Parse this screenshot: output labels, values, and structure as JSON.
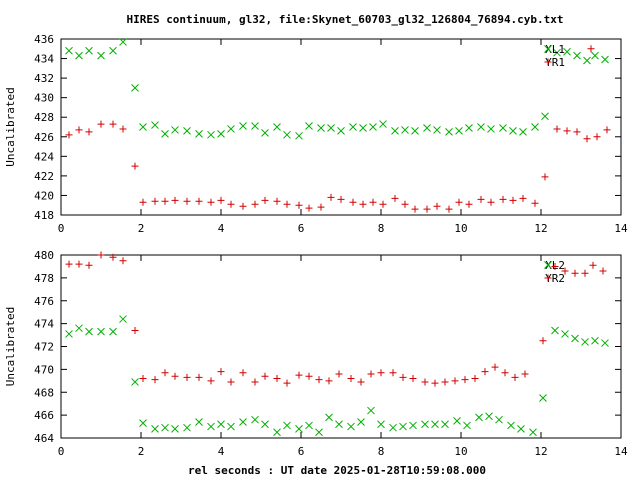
{
  "title": "HIRES continuum, gl32, file:Skynet_60703_gl32_126804_76894.cyb.txt",
  "chart_data": [
    {
      "type": "scatter",
      "ylabel": "Uncalibrated",
      "xlim": [
        0,
        14
      ],
      "ylim": [
        418,
        436
      ],
      "xticks": [
        0,
        2,
        4,
        6,
        8,
        10,
        12,
        14
      ],
      "yticks": [
        418,
        420,
        422,
        424,
        426,
        428,
        430,
        432,
        434,
        436
      ],
      "grid": false,
      "legend_position": "top-right",
      "series": [
        {
          "name": "XL1",
          "marker": "x",
          "color": "#00b000",
          "points": [
            [
              0.2,
              434.8
            ],
            [
              0.45,
              434.3
            ],
            [
              0.7,
              434.8
            ],
            [
              1.0,
              434.3
            ],
            [
              1.3,
              434.8
            ],
            [
              1.55,
              435.7
            ],
            [
              1.85,
              431.0
            ],
            [
              2.05,
              427.0
            ],
            [
              2.35,
              427.2
            ],
            [
              2.6,
              426.3
            ],
            [
              2.85,
              426.7
            ],
            [
              3.15,
              426.6
            ],
            [
              3.45,
              426.3
            ],
            [
              3.75,
              426.2
            ],
            [
              4.0,
              426.3
            ],
            [
              4.25,
              426.8
            ],
            [
              4.55,
              427.1
            ],
            [
              4.85,
              427.1
            ],
            [
              5.1,
              426.4
            ],
            [
              5.4,
              427.0
            ],
            [
              5.65,
              426.2
            ],
            [
              5.95,
              426.1
            ],
            [
              6.2,
              427.1
            ],
            [
              6.5,
              426.9
            ],
            [
              6.75,
              426.9
            ],
            [
              7.0,
              426.6
            ],
            [
              7.3,
              427.0
            ],
            [
              7.55,
              426.9
            ],
            [
              7.8,
              427.0
            ],
            [
              8.05,
              427.3
            ],
            [
              8.35,
              426.6
            ],
            [
              8.6,
              426.7
            ],
            [
              8.85,
              426.6
            ],
            [
              9.15,
              426.9
            ],
            [
              9.4,
              426.7
            ],
            [
              9.7,
              426.5
            ],
            [
              9.95,
              426.6
            ],
            [
              10.2,
              426.9
            ],
            [
              10.5,
              427.0
            ],
            [
              10.75,
              426.8
            ],
            [
              11.05,
              426.9
            ],
            [
              11.3,
              426.6
            ],
            [
              11.55,
              426.5
            ],
            [
              11.85,
              427.0
            ],
            [
              12.1,
              428.1
            ],
            [
              12.4,
              434.6
            ],
            [
              12.65,
              434.7
            ],
            [
              12.9,
              434.3
            ],
            [
              13.15,
              433.8
            ],
            [
              13.35,
              434.3
            ],
            [
              13.6,
              433.9
            ]
          ]
        },
        {
          "name": "YR1",
          "marker": "+",
          "color": "#d00000",
          "points": [
            [
              0.2,
              426.2
            ],
            [
              0.45,
              426.7
            ],
            [
              0.7,
              426.5
            ],
            [
              1.0,
              427.3
            ],
            [
              1.3,
              427.3
            ],
            [
              1.55,
              426.8
            ],
            [
              1.85,
              423.0
            ],
            [
              2.05,
              419.3
            ],
            [
              2.35,
              419.4
            ],
            [
              2.6,
              419.4
            ],
            [
              2.85,
              419.5
            ],
            [
              3.15,
              419.4
            ],
            [
              3.45,
              419.4
            ],
            [
              3.75,
              419.3
            ],
            [
              4.0,
              419.5
            ],
            [
              4.25,
              419.1
            ],
            [
              4.55,
              418.9
            ],
            [
              4.85,
              419.1
            ],
            [
              5.1,
              419.5
            ],
            [
              5.4,
              419.4
            ],
            [
              5.65,
              419.1
            ],
            [
              5.95,
              419.0
            ],
            [
              6.2,
              418.7
            ],
            [
              6.5,
              418.8
            ],
            [
              6.75,
              419.8
            ],
            [
              7.0,
              419.6
            ],
            [
              7.3,
              419.3
            ],
            [
              7.55,
              419.1
            ],
            [
              7.8,
              419.3
            ],
            [
              8.05,
              419.1
            ],
            [
              8.35,
              419.7
            ],
            [
              8.6,
              419.1
            ],
            [
              8.85,
              418.6
            ],
            [
              9.15,
              418.6
            ],
            [
              9.4,
              418.9
            ],
            [
              9.7,
              418.6
            ],
            [
              9.95,
              419.3
            ],
            [
              10.2,
              419.1
            ],
            [
              10.5,
              419.6
            ],
            [
              10.75,
              419.3
            ],
            [
              11.05,
              419.6
            ],
            [
              11.3,
              419.5
            ],
            [
              11.55,
              419.7
            ],
            [
              11.85,
              419.2
            ],
            [
              12.1,
              421.9
            ],
            [
              12.4,
              426.8
            ],
            [
              12.65,
              426.6
            ],
            [
              12.9,
              426.5
            ],
            [
              13.15,
              425.8
            ],
            [
              13.25,
              435.0
            ],
            [
              13.4,
              426.0
            ],
            [
              13.65,
              426.7
            ]
          ]
        }
      ]
    },
    {
      "type": "scatter",
      "xlabel": "rel seconds : UT date 2025-01-28T10:59:08.000",
      "ylabel": "Uncalibrated",
      "xlim": [
        0,
        14
      ],
      "ylim": [
        464,
        480
      ],
      "xticks": [
        0,
        2,
        4,
        6,
        8,
        10,
        12,
        14
      ],
      "yticks": [
        464,
        466,
        468,
        470,
        472,
        474,
        476,
        478,
        480
      ],
      "grid": false,
      "legend_position": "top-right",
      "series": [
        {
          "name": "XL2",
          "marker": "x",
          "color": "#00b000",
          "points": [
            [
              0.2,
              473.1
            ],
            [
              0.45,
              473.6
            ],
            [
              0.7,
              473.3
            ],
            [
              1.0,
              473.3
            ],
            [
              1.3,
              473.3
            ],
            [
              1.55,
              474.4
            ],
            [
              1.85,
              468.9
            ],
            [
              2.05,
              465.3
            ],
            [
              2.35,
              464.8
            ],
            [
              2.6,
              464.9
            ],
            [
              2.85,
              464.8
            ],
            [
              3.15,
              464.9
            ],
            [
              3.45,
              465.4
            ],
            [
              3.75,
              465.0
            ],
            [
              4.0,
              465.2
            ],
            [
              4.25,
              465.0
            ],
            [
              4.55,
              465.4
            ],
            [
              4.85,
              465.6
            ],
            [
              5.1,
              465.2
            ],
            [
              5.4,
              464.5
            ],
            [
              5.65,
              465.1
            ],
            [
              5.95,
              464.8
            ],
            [
              6.2,
              465.1
            ],
            [
              6.45,
              464.5
            ],
            [
              6.7,
              465.8
            ],
            [
              6.95,
              465.2
            ],
            [
              7.25,
              465.0
            ],
            [
              7.5,
              465.4
            ],
            [
              7.75,
              466.4
            ],
            [
              8.0,
              465.2
            ],
            [
              8.3,
              464.9
            ],
            [
              8.55,
              465.0
            ],
            [
              8.8,
              465.1
            ],
            [
              9.1,
              465.2
            ],
            [
              9.35,
              465.2
            ],
            [
              9.6,
              465.2
            ],
            [
              9.9,
              465.5
            ],
            [
              10.15,
              465.1
            ],
            [
              10.45,
              465.8
            ],
            [
              10.7,
              465.9
            ],
            [
              10.95,
              465.6
            ],
            [
              11.25,
              465.1
            ],
            [
              11.5,
              464.8
            ],
            [
              11.8,
              464.5
            ],
            [
              12.05,
              467.5
            ],
            [
              12.35,
              473.4
            ],
            [
              12.6,
              473.1
            ],
            [
              12.85,
              472.7
            ],
            [
              13.1,
              472.4
            ],
            [
              13.35,
              472.5
            ],
            [
              13.6,
              472.3
            ]
          ]
        },
        {
          "name": "YR2",
          "marker": "+",
          "color": "#d00000",
          "points": [
            [
              0.2,
              479.2
            ],
            [
              0.45,
              479.2
            ],
            [
              0.7,
              479.1
            ],
            [
              1.0,
              480.0
            ],
            [
              1.3,
              479.8
            ],
            [
              1.55,
              479.5
            ],
            [
              1.85,
              473.4
            ],
            [
              2.05,
              469.2
            ],
            [
              2.35,
              469.1
            ],
            [
              2.6,
              469.7
            ],
            [
              2.85,
              469.4
            ],
            [
              3.15,
              469.3
            ],
            [
              3.45,
              469.3
            ],
            [
              3.75,
              469.0
            ],
            [
              4.0,
              469.8
            ],
            [
              4.25,
              468.9
            ],
            [
              4.55,
              469.7
            ],
            [
              4.85,
              468.9
            ],
            [
              5.1,
              469.4
            ],
            [
              5.4,
              469.2
            ],
            [
              5.65,
              468.8
            ],
            [
              5.95,
              469.5
            ],
            [
              6.2,
              469.4
            ],
            [
              6.45,
              469.1
            ],
            [
              6.7,
              469.0
            ],
            [
              6.95,
              469.6
            ],
            [
              7.25,
              469.2
            ],
            [
              7.5,
              468.9
            ],
            [
              7.75,
              469.6
            ],
            [
              8.0,
              469.7
            ],
            [
              8.3,
              469.7
            ],
            [
              8.55,
              469.3
            ],
            [
              8.8,
              469.2
            ],
            [
              9.1,
              468.9
            ],
            [
              9.35,
              468.8
            ],
            [
              9.6,
              468.9
            ],
            [
              9.85,
              469.0
            ],
            [
              10.1,
              469.1
            ],
            [
              10.35,
              469.2
            ],
            [
              10.6,
              469.8
            ],
            [
              10.85,
              470.2
            ],
            [
              11.1,
              469.7
            ],
            [
              11.35,
              469.3
            ],
            [
              11.6,
              469.6
            ],
            [
              12.05,
              472.5
            ],
            [
              12.35,
              479.0
            ],
            [
              12.6,
              478.6
            ],
            [
              12.85,
              478.4
            ],
            [
              13.1,
              478.4
            ],
            [
              13.3,
              479.1
            ],
            [
              13.55,
              478.6
            ]
          ]
        }
      ]
    }
  ]
}
